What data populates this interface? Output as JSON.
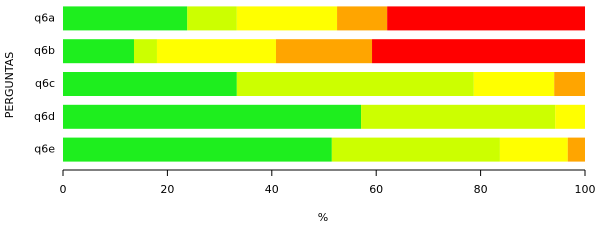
{
  "chart_data": {
    "type": "stacked-bar-horizontal",
    "categories": [
      "q6a",
      "q6b",
      "q6c",
      "q6d",
      "q6e"
    ],
    "series": [
      {
        "color": "#1eee1e",
        "values": [
          23.8,
          13.6,
          33.3,
          57.1,
          51.5
        ]
      },
      {
        "color": "#ccff00",
        "values": [
          9.5,
          4.4,
          45.4,
          37.2,
          32.2
        ]
      },
      {
        "color": "#ffff00",
        "values": [
          19.2,
          22.8,
          15.4,
          5.7,
          13.0
        ]
      },
      {
        "color": "#ffa500",
        "values": [
          9.6,
          18.4,
          5.9,
          0,
          3.3
        ]
      },
      {
        "color": "#ff0000",
        "values": [
          37.9,
          40.8,
          0,
          0,
          0
        ]
      }
    ],
    "xlabel": "%",
    "ylabel": "PERGUNTAS",
    "xlim": [
      0,
      100
    ],
    "xticks": [
      0,
      20,
      40,
      60,
      80,
      100
    ]
  }
}
